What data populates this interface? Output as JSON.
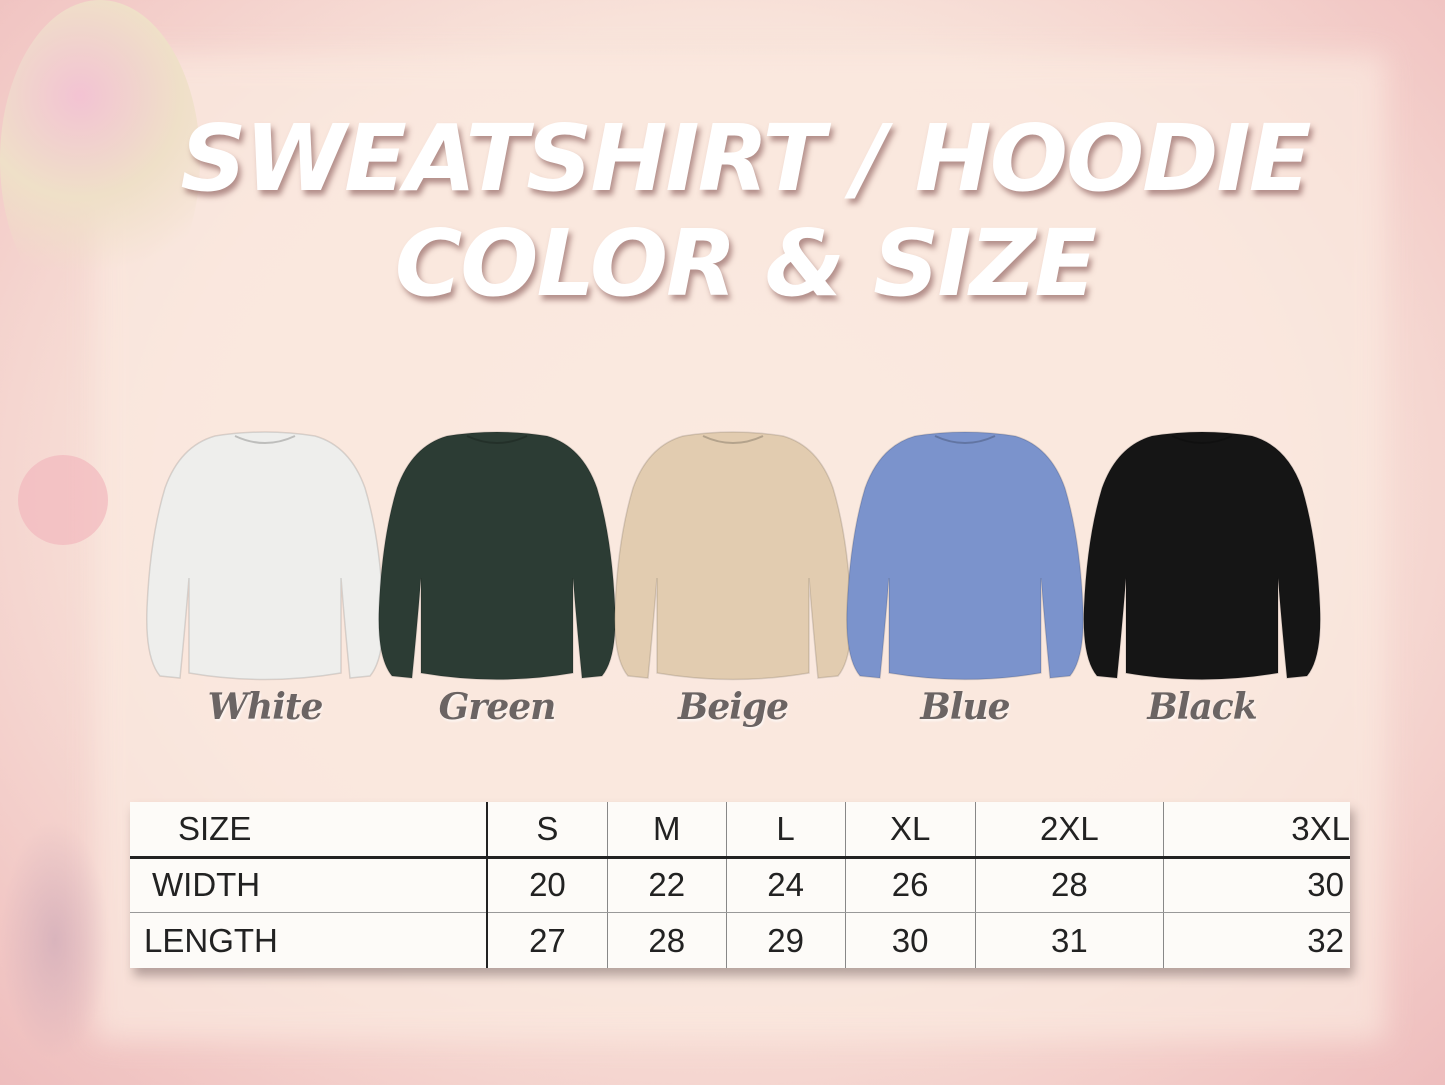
{
  "title": {
    "line1": "SWEATSHIRT / HOODIE",
    "line2": "COLOR & SIZE"
  },
  "colors": [
    {
      "name": "White",
      "hex": "#eeeeec"
    },
    {
      "name": "Green",
      "hex": "#2c3c34"
    },
    {
      "name": "Beige",
      "hex": "#e2ccb0"
    },
    {
      "name": "Blue",
      "hex": "#7b93cc"
    },
    {
      "name": "Black",
      "hex": "#151515"
    }
  ],
  "size_table": {
    "headers": [
      "SIZE",
      "S",
      "M",
      "L",
      "XL",
      "2XL",
      "3XL"
    ],
    "rows": [
      [
        "WIDTH",
        "20",
        "22",
        "24",
        "26",
        "28",
        "30"
      ],
      [
        "LENGTH",
        "27",
        "28",
        "29",
        "30",
        "31",
        "32"
      ]
    ]
  }
}
